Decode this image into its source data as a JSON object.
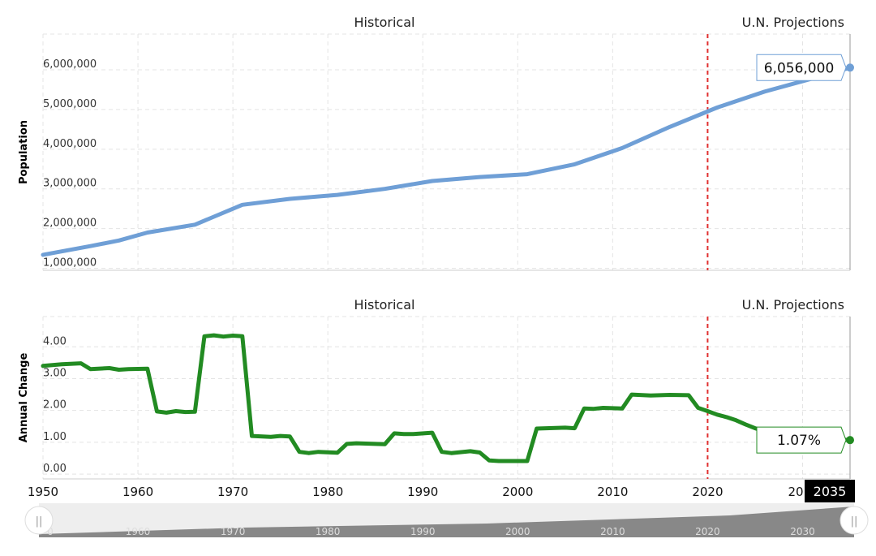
{
  "chart_data": [
    {
      "type": "line",
      "ylabel": "Population",
      "ylim": [
        950000,
        6900000
      ],
      "xlim": [
        1950,
        2035
      ],
      "yticks": [
        "1,000,000",
        "2,000,000",
        "3,000,000",
        "4,000,000",
        "5,000,000",
        "6,000,000"
      ],
      "ytick_values": [
        1000000,
        2000000,
        3000000,
        4000000,
        5000000,
        6000000
      ],
      "section_labels": {
        "historical": "Historical",
        "projections": "U.N. Projections"
      },
      "divider_year": 2020,
      "color": "#6f9fd6",
      "series": [
        {
          "x": [
            1950,
            1955,
            1958,
            1961,
            1966,
            1968,
            1971,
            1976,
            1981,
            1986,
            1991,
            1996,
            2001,
            2006,
            2011,
            2016,
            2021,
            2026,
            2031,
            2035
          ],
          "values": [
            1340000,
            1560000,
            1700000,
            1900000,
            2100000,
            2300000,
            2600000,
            2750000,
            2850000,
            3000000,
            3200000,
            3300000,
            3370000,
            3620000,
            4030000,
            4560000,
            5050000,
            5450000,
            5780000,
            6056000
          ]
        }
      ],
      "end_label": "6,056,000"
    },
    {
      "type": "line",
      "ylabel": "Annual Change",
      "ylim": [
        -0.15,
        4.95
      ],
      "xlim": [
        1950,
        2035
      ],
      "yticks": [
        "0.00",
        "1.00",
        "2.00",
        "3.00",
        "4.00"
      ],
      "ytick_values": [
        0,
        1,
        2,
        3,
        4
      ],
      "section_labels": {
        "historical": "Historical",
        "projections": "U.N. Projections"
      },
      "divider_year": 2020,
      "color": "#228b22",
      "series": [
        {
          "x": [
            1950,
            1952,
            1954,
            1955,
            1957,
            1958,
            1959,
            1961,
            1962,
            1963,
            1964,
            1965,
            1966,
            1967,
            1968,
            1969,
            1970,
            1971,
            1972,
            1974,
            1975,
            1976,
            1977,
            1978,
            1979,
            1981,
            1982,
            1983,
            1986,
            1987,
            1988,
            1989,
            1991,
            1992,
            1993,
            1995,
            1996,
            1997,
            1998,
            2001,
            2002,
            2005,
            2006,
            2007,
            2008,
            2009,
            2011,
            2012,
            2014,
            2016,
            2018,
            2019,
            2020,
            2021,
            2022,
            2023,
            2024,
            2025,
            2026,
            2028,
            2030,
            2032,
            2034,
            2035
          ],
          "values": [
            3.4,
            3.45,
            3.48,
            3.3,
            3.33,
            3.28,
            3.3,
            3.31,
            1.97,
            1.93,
            1.98,
            1.95,
            1.96,
            4.33,
            4.36,
            4.32,
            4.35,
            4.33,
            1.2,
            1.17,
            1.2,
            1.18,
            0.7,
            0.66,
            0.7,
            0.67,
            0.95,
            0.97,
            0.94,
            1.28,
            1.26,
            1.26,
            1.3,
            0.7,
            0.66,
            0.72,
            0.68,
            0.43,
            0.41,
            0.41,
            1.43,
            1.46,
            1.44,
            2.06,
            2.05,
            2.08,
            2.06,
            2.5,
            2.47,
            2.49,
            2.48,
            2.08,
            1.98,
            1.87,
            1.79,
            1.69,
            1.56,
            1.44,
            1.35,
            1.24,
            1.19,
            1.14,
            1.09,
            1.07
          ]
        }
      ],
      "end_label": "1.07%"
    }
  ],
  "xaxis": {
    "ticks": [
      "1950",
      "1960",
      "1970",
      "1980",
      "1990",
      "2000",
      "2010",
      "2020"
    ],
    "tick_values": [
      1950,
      1960,
      1970,
      1980,
      1990,
      2000,
      2010,
      2020
    ],
    "partial_label": "20",
    "end_badge": "2035"
  },
  "navigator": {
    "ticks": [
      "1960",
      "1970",
      "1980",
      "1990",
      "2000",
      "2010",
      "2020",
      "2030"
    ],
    "tick_values": [
      1960,
      1970,
      1980,
      1990,
      2000,
      2010,
      2020,
      2030
    ],
    "partial_label": "0",
    "handle_glyph": "||"
  }
}
